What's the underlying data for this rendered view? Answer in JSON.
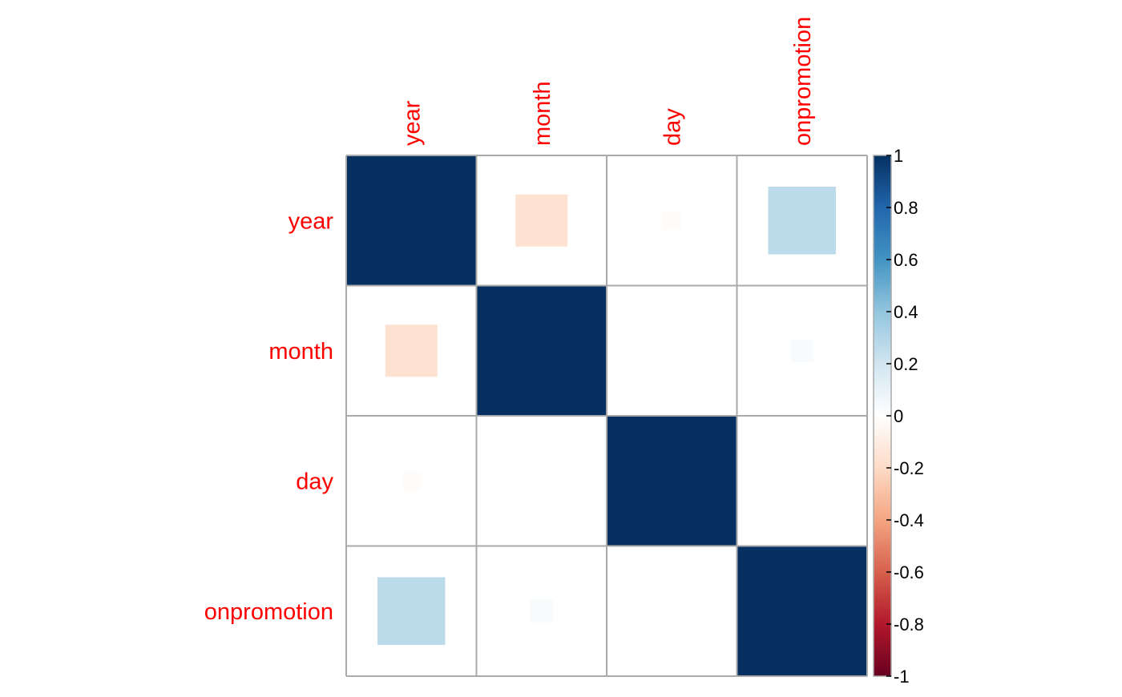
{
  "chart_data": {
    "type": "heatmap",
    "method": "square",
    "variables": [
      "year",
      "month",
      "day",
      "onpromotion"
    ],
    "matrix": [
      [
        1.0,
        -0.16,
        -0.02,
        0.27
      ],
      [
        -0.16,
        1.0,
        -0.003,
        0.03
      ],
      [
        -0.02,
        -0.003,
        1.0,
        -0.002
      ],
      [
        0.27,
        0.03,
        -0.002,
        1.0
      ]
    ],
    "colorbar": {
      "min": -1,
      "max": 1,
      "ticks": [
        "1",
        "0.8",
        "0.6",
        "0.4",
        "0.2",
        "0",
        "-0.2",
        "-0.4",
        "-0.6",
        "-0.8",
        "-1"
      ],
      "tick_values": [
        1,
        0.8,
        0.6,
        0.4,
        0.2,
        0,
        -0.2,
        -0.4,
        -0.6,
        -0.8,
        -1
      ]
    },
    "colors": {
      "label": "#ff0000",
      "grid": "#aaaaaa",
      "palette": [
        "#67001F",
        "#B2182B",
        "#D6604D",
        "#F4A582",
        "#FDDBC7",
        "#FFFFFF",
        "#D1E5F0",
        "#92C5DE",
        "#4393C3",
        "#2166AC",
        "#053061"
      ]
    }
  }
}
